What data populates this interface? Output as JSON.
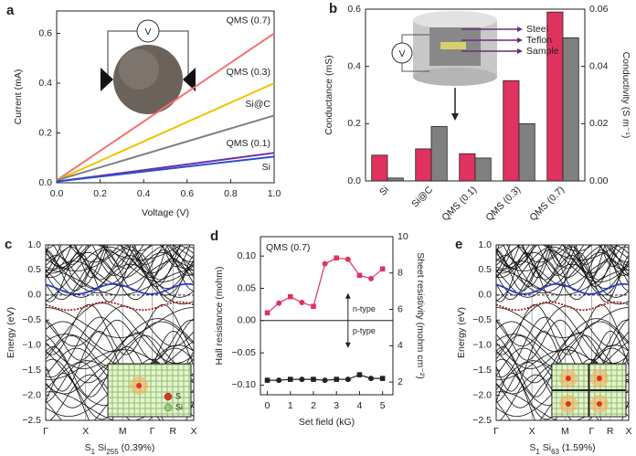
{
  "chart_data": [
    {
      "type": "line",
      "panel_label": "a",
      "x_label": "Voltage (V)",
      "y_label": "Current (mA)",
      "x": [
        0,
        1
      ],
      "series": [
        {
          "name": "QMS (0.7)",
          "color": "#f07470",
          "values": [
            0.01,
            0.6
          ]
        },
        {
          "name": "QMS (0.3)",
          "color": "#f2c200",
          "values": [
            0.01,
            0.4
          ]
        },
        {
          "name": "Si@C",
          "color": "#808080",
          "values": [
            0.01,
            0.27
          ]
        },
        {
          "name": "QMS (0.1)",
          "color": "#7030a0",
          "values": [
            0.005,
            0.12
          ]
        },
        {
          "name": "Si",
          "color": "#2b50d0",
          "values": [
            0.005,
            0.105
          ]
        }
      ],
      "xlim": [
        0,
        1
      ],
      "ylim": [
        0,
        0.69
      ],
      "xticks": [
        {
          "value": 0,
          "label": "0.0"
        },
        0.2,
        0.4,
        0.6,
        0.8,
        {
          "value": 1,
          "label": "1.0"
        }
      ],
      "yticks": [
        {
          "value": 0,
          "label": "0.0"
        },
        0.2,
        0.4,
        0.6
      ],
      "annotations": [
        "V"
      ]
    },
    {
      "type": "bar",
      "panel_label": "b",
      "y_label": "Conductance (mS)",
      "y2_label": "Conductivity (S m⁻¹)",
      "categories": [
        "Si",
        "Si@C",
        "QMS (0.1)",
        "QMS (0.3)",
        "QMS (0.7)"
      ],
      "series": [
        {
          "color": "#e0325f",
          "values": [
            0.09,
            0.112,
            0.095,
            0.35,
            0.59
          ]
        },
        {
          "color": "#808080",
          "axis": "y2",
          "values": [
            0.001,
            0.019,
            0.008,
            0.02,
            0.05
          ]
        }
      ],
      "ylim": [
        0,
        0.6
      ],
      "yticks": [
        {
          "value": 0,
          "label": "0.0"
        },
        0.2,
        0.4,
        0.6
      ],
      "y2lim": [
        0,
        0.06
      ],
      "y2ticks": [
        {
          "value": 0,
          "label": "0.00"
        },
        0.02,
        0.04,
        0.06
      ],
      "annotations": [
        "V",
        "Steel",
        "Teflon",
        "Sample"
      ]
    },
    {
      "type": "band",
      "panel_label": "c",
      "y_label": "Energy (eV)",
      "x_label": [
        "S",
        "1",
        " Si",
        "255",
        " (0.39%)"
      ],
      "categories": [
        "Γ",
        "X",
        "M",
        "Γ",
        "R",
        "X"
      ],
      "ylim": [
        -2.5,
        1
      ],
      "yticks": [
        {
          "value": 1,
          "label": "1.0"
        },
        0.5,
        {
          "value": 0,
          "label": "0.0"
        },
        {
          "value": -0.5,
          "label": "−0.5"
        },
        {
          "value": -1,
          "label": "−1.0"
        },
        {
          "value": -1.5,
          "label": "−1.5"
        },
        {
          "value": -2,
          "label": "−2.0"
        },
        {
          "value": -2.5,
          "label": "−2.5"
        }
      ],
      "legend": [
        "S",
        "Si"
      ]
    },
    {
      "type": "scatter",
      "panel_label": "d",
      "x_label": "Set field (kG)",
      "y_label": "Hall resistance (mohm)",
      "y2_label": "Sheet resistivity (mohm cm⁻²)",
      "x": [
        0,
        0.5,
        1,
        1.5,
        2,
        2.5,
        3,
        3.5,
        4,
        4.5,
        5
      ],
      "series": [
        {
          "color": "#e0325f",
          "values": [
            0.012,
            0.027,
            0.037,
            0.028,
            0.022,
            0.088,
            0.097,
            0.095,
            0.07,
            0.065,
            0.08
          ]
        },
        {
          "color": "#222222",
          "axis": "y2",
          "values": [
            2.1,
            2.1,
            2.15,
            2.15,
            2.15,
            2.1,
            2.15,
            2.15,
            2.4,
            2.2,
            2.2
          ]
        }
      ],
      "xlim": [
        -0.3,
        5.45
      ],
      "ylim": [
        -0.115,
        0.13
      ],
      "y2lim": [
        1.3,
        10
      ],
      "xticks": [
        0,
        1,
        2,
        3,
        4,
        5
      ],
      "yticks": [
        {
          "value": 0.1,
          "label": "0.10"
        },
        0.05,
        {
          "value": 0,
          "label": "0.00"
        },
        {
          "value": -0.05,
          "label": "−0.05"
        },
        {
          "value": -0.1,
          "label": "−0.10"
        }
      ],
      "y2ticks": [
        2,
        4,
        6,
        8,
        10
      ],
      "annotations": [
        "QMS (0.7)",
        "n-type",
        "p-type"
      ]
    },
    {
      "type": "band",
      "panel_label": "e",
      "y_label": "Energy (eV)",
      "x_label": [
        "S",
        "1",
        " Si",
        "63",
        " (1.59%)"
      ],
      "categories": [
        "Γ",
        "X",
        "M",
        "Γ",
        "R",
        "X"
      ],
      "ylim": [
        -2.5,
        1
      ],
      "yticks": [
        {
          "value": 1,
          "label": "1.0"
        },
        0.5,
        {
          "value": 0,
          "label": "0.0"
        },
        {
          "value": -0.5,
          "label": "−0.5"
        },
        {
          "value": -1,
          "label": "−1.0"
        },
        {
          "value": -1.5,
          "label": "−1.5"
        },
        {
          "value": -2,
          "label": "−2.0"
        },
        {
          "value": -2.5,
          "label": "−2.5"
        }
      ]
    }
  ]
}
